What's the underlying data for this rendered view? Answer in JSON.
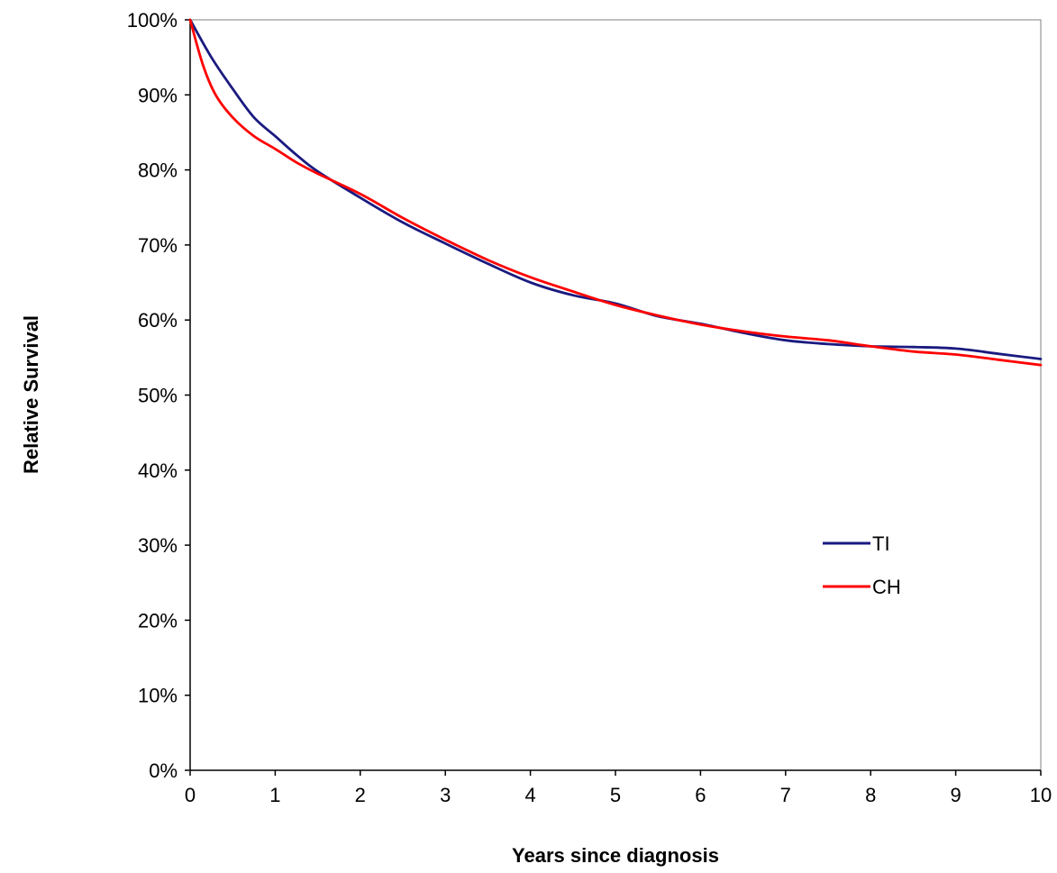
{
  "chart_data": {
    "type": "line",
    "title": "",
    "xlabel": "Years since diagnosis",
    "ylabel": "Relative Survival",
    "xlim": [
      0,
      10
    ],
    "ylim": [
      0,
      100
    ],
    "x_ticks": [
      "0",
      "1",
      "2",
      "3",
      "4",
      "5",
      "6",
      "7",
      "8",
      "9",
      "10"
    ],
    "y_ticks": [
      "0%",
      "10%",
      "20%",
      "30%",
      "40%",
      "50%",
      "60%",
      "70%",
      "80%",
      "90%",
      "100%"
    ],
    "grid": false,
    "legend_position": "right-middle",
    "series": [
      {
        "name": "TI",
        "color": "#1a1a80",
        "x": [
          0,
          0.25,
          0.5,
          0.75,
          1,
          1.25,
          1.5,
          2,
          2.5,
          3,
          3.5,
          4,
          4.5,
          5,
          5.5,
          6,
          6.5,
          7,
          7.5,
          8,
          8.5,
          9,
          9.5,
          10
        ],
        "y": [
          100,
          95.0,
          90.8,
          87.0,
          84.5,
          82.0,
          79.8,
          76.3,
          73.0,
          70.2,
          67.5,
          65.0,
          63.3,
          62.2,
          60.5,
          59.5,
          58.3,
          57.3,
          56.8,
          56.5,
          56.4,
          56.2,
          55.5,
          54.8
        ]
      },
      {
        "name": "CH",
        "color": "#ff0000",
        "x": [
          0,
          0.15,
          0.3,
          0.5,
          0.75,
          1,
          1.25,
          1.5,
          2,
          2.5,
          3,
          3.5,
          4,
          4.5,
          5,
          5.5,
          6,
          6.5,
          7,
          7.5,
          8,
          8.5,
          9,
          9.5,
          10
        ],
        "y": [
          100,
          94.0,
          90.0,
          87.0,
          84.5,
          82.8,
          81.0,
          79.5,
          76.8,
          73.6,
          70.7,
          68.0,
          65.7,
          63.8,
          62.0,
          60.6,
          59.4,
          58.5,
          57.8,
          57.3,
          56.5,
          55.8,
          55.4,
          54.7,
          54.0
        ]
      }
    ]
  }
}
